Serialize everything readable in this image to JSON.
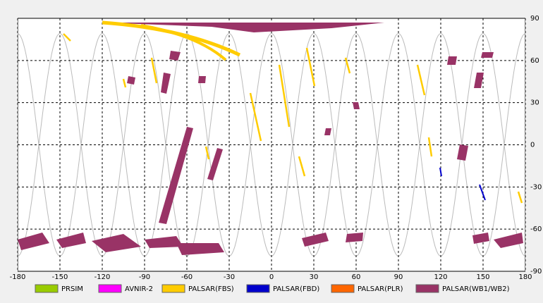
{
  "chart_data": {
    "type": "map",
    "xlim": [
      -180,
      180
    ],
    "ylim": [
      -90,
      90
    ],
    "xticks": [
      -180,
      -150,
      -120,
      -90,
      -60,
      -30,
      0,
      30,
      60,
      90,
      120,
      150,
      180
    ],
    "yticks": [
      -90,
      -60,
      -30,
      0,
      30,
      60,
      90
    ],
    "grid": true,
    "legend": [
      {
        "name": "PRSIM",
        "color": "#99cc00"
      },
      {
        "name": "AVNIR-2",
        "color": "#ff00ff"
      },
      {
        "name": "PALSAR(FBS)",
        "color": "#ffcc00"
      },
      {
        "name": "PALSAR(FBD)",
        "color": "#0000cc"
      },
      {
        "name": "PALSAR(PLR)",
        "color": "#ff6600"
      },
      {
        "name": "PALSAR(WB1/WB2)",
        "color": "#993366"
      }
    ]
  }
}
